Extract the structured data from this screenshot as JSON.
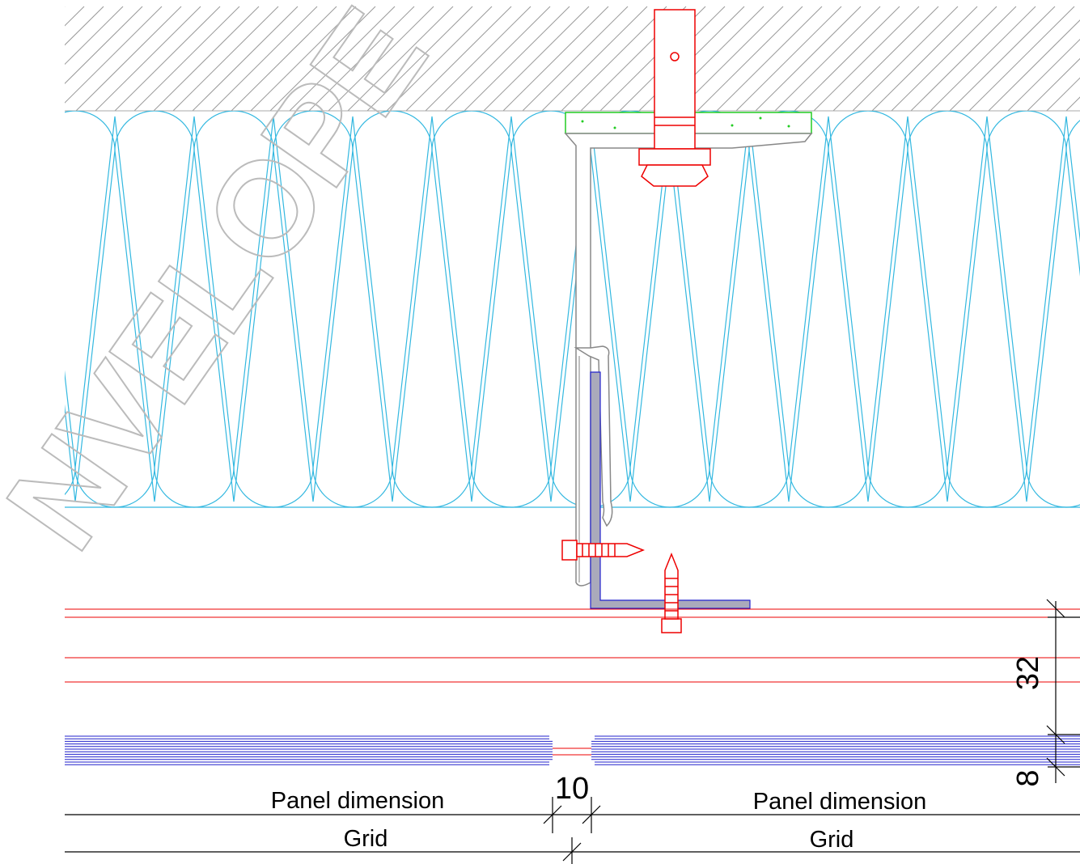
{
  "watermark": "NVELOPE",
  "dimensions": {
    "joint": 10,
    "cladding": 32,
    "panel": 8
  },
  "labels": {
    "panel_left": "Panel dimension",
    "panel_right": "Panel dimension",
    "grid_left": "Grid",
    "grid_right": "Grid"
  }
}
